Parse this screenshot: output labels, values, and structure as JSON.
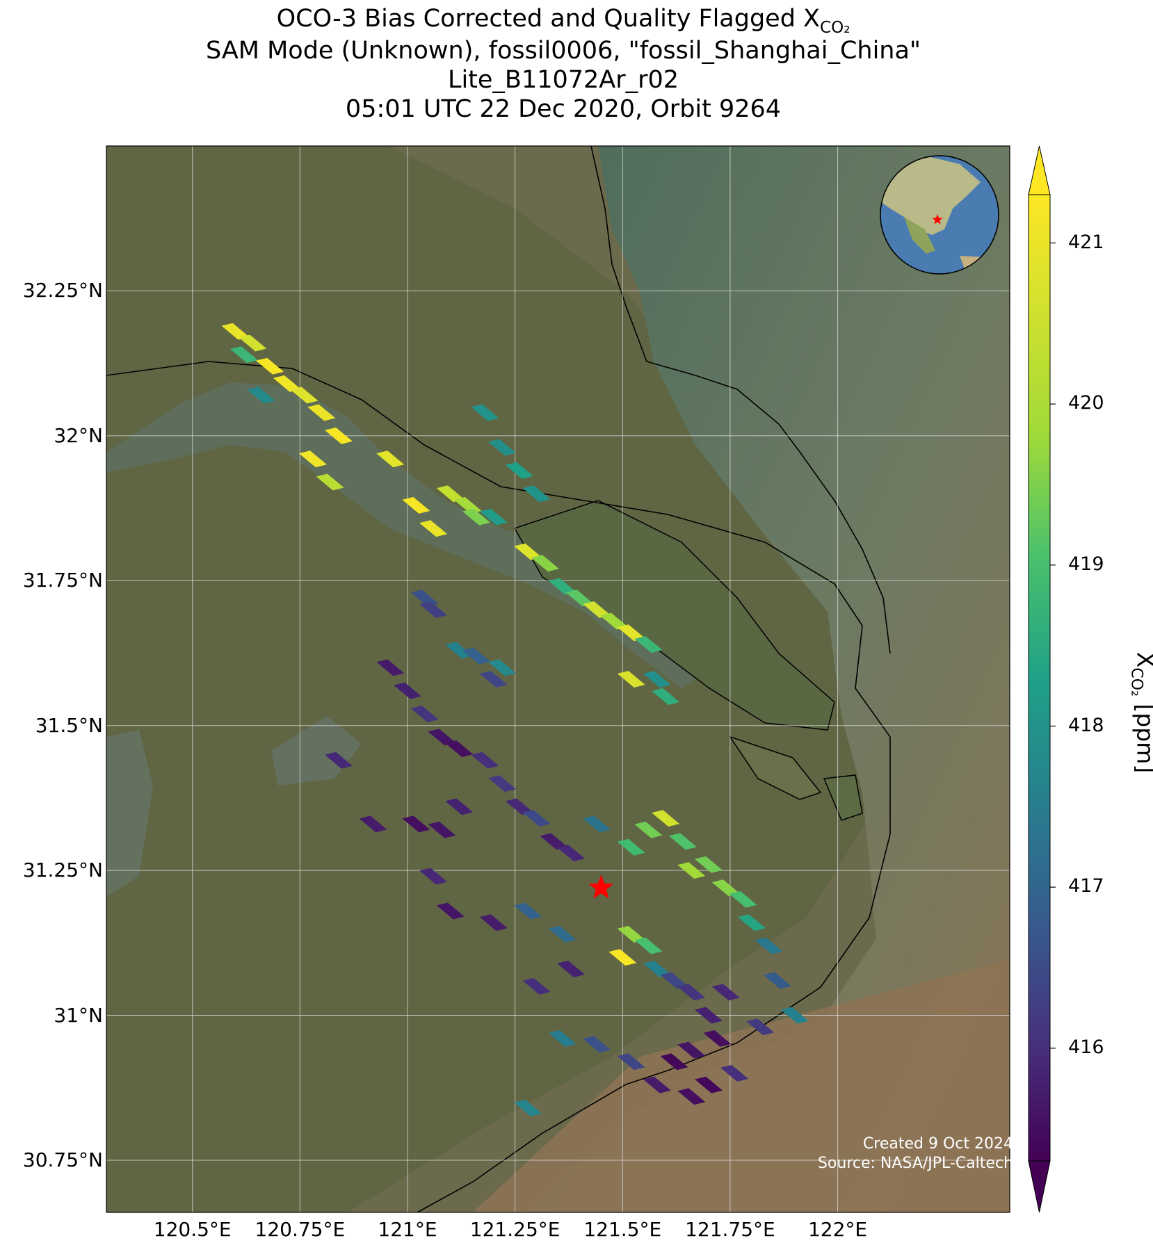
{
  "title": {
    "line1_main": "OCO-3 Bias Corrected and Quality Flagged X",
    "line1_sub": "CO₂",
    "line2": "SAM Mode (Unknown), fossil0006, \"fossil_Shanghai_China\"",
    "line3": "Lite_B11072Ar_r02",
    "line4": "05:01 UTC 22 Dec 2020, Orbit 9264"
  },
  "credit": {
    "created": "Created 9 Oct 2024",
    "source": "Source: NASA/JPL-Caltech"
  },
  "colorbar": {
    "label_main": "X",
    "label_sub": "CO₂",
    "label_unit": " [ppm]",
    "ticks": [
      "416",
      "417",
      "418",
      "419",
      "420",
      "421"
    ],
    "min": 415.3,
    "max": 421.3,
    "colormap": "viridis",
    "extend": "both"
  },
  "chart_data": {
    "type": "heatmap",
    "projection": "lat-lon map over satellite imagery",
    "xlim": [
      120.3,
      122.4
    ],
    "ylim": [
      30.66,
      32.5
    ],
    "x_ticks": [
      "120.5°E",
      "120.75°E",
      "121°E",
      "121.25°E",
      "121.5°E",
      "121.75°E",
      "122°E"
    ],
    "y_ticks": [
      "30.75°N",
      "31°N",
      "31.25°N",
      "31.5°N",
      "31.75°N",
      "32°N",
      "32.25°N"
    ],
    "grid": true,
    "target_marker": {
      "symbol": "red star",
      "lon": 121.45,
      "lat": 31.22
    },
    "inset_globe": {
      "position": "top-right",
      "marker": "red star over Shanghai"
    },
    "soundings": [
      {
        "lon": 120.6,
        "lat": 32.18,
        "xco2": 421.0
      },
      {
        "lon": 120.62,
        "lat": 32.14,
        "xco2": 418.8
      },
      {
        "lon": 120.64,
        "lat": 32.16,
        "xco2": 420.6
      },
      {
        "lon": 120.68,
        "lat": 32.12,
        "xco2": 421.2
      },
      {
        "lon": 120.72,
        "lat": 32.09,
        "xco2": 421.1
      },
      {
        "lon": 120.76,
        "lat": 32.07,
        "xco2": 420.8
      },
      {
        "lon": 120.66,
        "lat": 32.07,
        "xco2": 417.8
      },
      {
        "lon": 120.8,
        "lat": 32.04,
        "xco2": 421.0
      },
      {
        "lon": 120.84,
        "lat": 32.0,
        "xco2": 421.2
      },
      {
        "lon": 120.78,
        "lat": 31.96,
        "xco2": 421.1
      },
      {
        "lon": 120.82,
        "lat": 31.92,
        "xco2": 420.2
      },
      {
        "lon": 120.96,
        "lat": 31.96,
        "xco2": 420.9
      },
      {
        "lon": 121.02,
        "lat": 31.88,
        "xco2": 421.2
      },
      {
        "lon": 121.06,
        "lat": 31.84,
        "xco2": 421.0
      },
      {
        "lon": 121.1,
        "lat": 31.9,
        "xco2": 420.4
      },
      {
        "lon": 121.14,
        "lat": 31.88,
        "xco2": 419.9
      },
      {
        "lon": 121.16,
        "lat": 31.86,
        "xco2": 419.5
      },
      {
        "lon": 121.2,
        "lat": 31.86,
        "xco2": 418.2
      },
      {
        "lon": 121.18,
        "lat": 32.04,
        "xco2": 418.0
      },
      {
        "lon": 121.22,
        "lat": 31.98,
        "xco2": 417.9
      },
      {
        "lon": 121.26,
        "lat": 31.94,
        "xco2": 418.3
      },
      {
        "lon": 121.3,
        "lat": 31.9,
        "xco2": 418.0
      },
      {
        "lon": 121.28,
        "lat": 31.8,
        "xco2": 420.8
      },
      {
        "lon": 121.32,
        "lat": 31.78,
        "xco2": 419.6
      },
      {
        "lon": 121.36,
        "lat": 31.74,
        "xco2": 418.6
      },
      {
        "lon": 121.4,
        "lat": 31.72,
        "xco2": 419.2
      },
      {
        "lon": 121.44,
        "lat": 31.7,
        "xco2": 420.6
      },
      {
        "lon": 121.48,
        "lat": 31.68,
        "xco2": 419.8
      },
      {
        "lon": 121.52,
        "lat": 31.66,
        "xco2": 420.9
      },
      {
        "lon": 121.56,
        "lat": 31.64,
        "xco2": 418.8
      },
      {
        "lon": 121.52,
        "lat": 31.58,
        "xco2": 420.7
      },
      {
        "lon": 121.58,
        "lat": 31.58,
        "xco2": 417.9
      },
      {
        "lon": 121.6,
        "lat": 31.55,
        "xco2": 418.6
      },
      {
        "lon": 121.04,
        "lat": 31.72,
        "xco2": 416.6
      },
      {
        "lon": 121.06,
        "lat": 31.7,
        "xco2": 416.3
      },
      {
        "lon": 121.12,
        "lat": 31.63,
        "xco2": 417.6
      },
      {
        "lon": 121.16,
        "lat": 31.62,
        "xco2": 416.9
      },
      {
        "lon": 121.2,
        "lat": 31.58,
        "xco2": 416.4
      },
      {
        "lon": 121.22,
        "lat": 31.6,
        "xco2": 417.8
      },
      {
        "lon": 120.96,
        "lat": 31.6,
        "xco2": 415.7
      },
      {
        "lon": 121.0,
        "lat": 31.56,
        "xco2": 415.8
      },
      {
        "lon": 121.04,
        "lat": 31.52,
        "xco2": 416.1
      },
      {
        "lon": 121.08,
        "lat": 31.48,
        "xco2": 415.6
      },
      {
        "lon": 121.12,
        "lat": 31.46,
        "xco2": 415.5
      },
      {
        "lon": 121.18,
        "lat": 31.44,
        "xco2": 416.0
      },
      {
        "lon": 121.22,
        "lat": 31.4,
        "xco2": 416.2
      },
      {
        "lon": 121.26,
        "lat": 31.36,
        "xco2": 415.9
      },
      {
        "lon": 121.3,
        "lat": 31.34,
        "xco2": 416.5
      },
      {
        "lon": 121.34,
        "lat": 31.3,
        "xco2": 415.7
      },
      {
        "lon": 121.38,
        "lat": 31.28,
        "xco2": 415.9
      },
      {
        "lon": 121.44,
        "lat": 31.33,
        "xco2": 417.3
      },
      {
        "lon": 121.12,
        "lat": 31.36,
        "xco2": 415.8
      },
      {
        "lon": 121.08,
        "lat": 31.32,
        "xco2": 415.6
      },
      {
        "lon": 120.92,
        "lat": 31.33,
        "xco2": 415.7
      },
      {
        "lon": 120.84,
        "lat": 31.44,
        "xco2": 415.9
      },
      {
        "lon": 121.02,
        "lat": 31.33,
        "xco2": 415.5
      },
      {
        "lon": 121.06,
        "lat": 31.24,
        "xco2": 415.9
      },
      {
        "lon": 121.1,
        "lat": 31.18,
        "xco2": 415.6
      },
      {
        "lon": 121.2,
        "lat": 31.16,
        "xco2": 415.7
      },
      {
        "lon": 121.28,
        "lat": 31.18,
        "xco2": 416.9
      },
      {
        "lon": 121.36,
        "lat": 31.14,
        "xco2": 417.1
      },
      {
        "lon": 121.38,
        "lat": 31.08,
        "xco2": 415.8
      },
      {
        "lon": 121.3,
        "lat": 31.05,
        "xco2": 416.0
      },
      {
        "lon": 121.52,
        "lat": 31.29,
        "xco2": 418.9
      },
      {
        "lon": 121.56,
        "lat": 31.32,
        "xco2": 419.4
      },
      {
        "lon": 121.6,
        "lat": 31.34,
        "xco2": 420.6
      },
      {
        "lon": 121.64,
        "lat": 31.3,
        "xco2": 419.1
      },
      {
        "lon": 121.66,
        "lat": 31.25,
        "xco2": 419.8
      },
      {
        "lon": 121.7,
        "lat": 31.26,
        "xco2": 419.4
      },
      {
        "lon": 121.74,
        "lat": 31.22,
        "xco2": 419.6
      },
      {
        "lon": 121.78,
        "lat": 31.2,
        "xco2": 419.0
      },
      {
        "lon": 121.8,
        "lat": 31.16,
        "xco2": 418.4
      },
      {
        "lon": 121.84,
        "lat": 31.12,
        "xco2": 417.4
      },
      {
        "lon": 121.86,
        "lat": 31.06,
        "xco2": 416.8
      },
      {
        "lon": 121.9,
        "lat": 31.0,
        "xco2": 417.6
      },
      {
        "lon": 121.52,
        "lat": 31.14,
        "xco2": 419.7
      },
      {
        "lon": 121.56,
        "lat": 31.12,
        "xco2": 419.0
      },
      {
        "lon": 121.5,
        "lat": 31.1,
        "xco2": 421.2
      },
      {
        "lon": 121.58,
        "lat": 31.08,
        "xco2": 417.6
      },
      {
        "lon": 121.62,
        "lat": 31.06,
        "xco2": 416.4
      },
      {
        "lon": 121.66,
        "lat": 31.04,
        "xco2": 416.1
      },
      {
        "lon": 121.7,
        "lat": 31.0,
        "xco2": 415.8
      },
      {
        "lon": 121.72,
        "lat": 30.96,
        "xco2": 415.5
      },
      {
        "lon": 121.66,
        "lat": 30.94,
        "xco2": 415.6
      },
      {
        "lon": 121.62,
        "lat": 30.92,
        "xco2": 415.4
      },
      {
        "lon": 121.58,
        "lat": 30.88,
        "xco2": 415.7
      },
      {
        "lon": 121.66,
        "lat": 30.86,
        "xco2": 415.5
      },
      {
        "lon": 121.7,
        "lat": 30.88,
        "xco2": 415.4
      },
      {
        "lon": 121.76,
        "lat": 30.9,
        "xco2": 416.0
      },
      {
        "lon": 121.52,
        "lat": 30.92,
        "xco2": 416.4
      },
      {
        "lon": 121.44,
        "lat": 30.95,
        "xco2": 416.6
      },
      {
        "lon": 121.36,
        "lat": 30.96,
        "xco2": 417.5
      },
      {
        "lon": 121.28,
        "lat": 30.84,
        "xco2": 417.7
      },
      {
        "lon": 121.82,
        "lat": 30.98,
        "xco2": 416.2
      },
      {
        "lon": 121.74,
        "lat": 31.04,
        "xco2": 415.9
      }
    ]
  }
}
